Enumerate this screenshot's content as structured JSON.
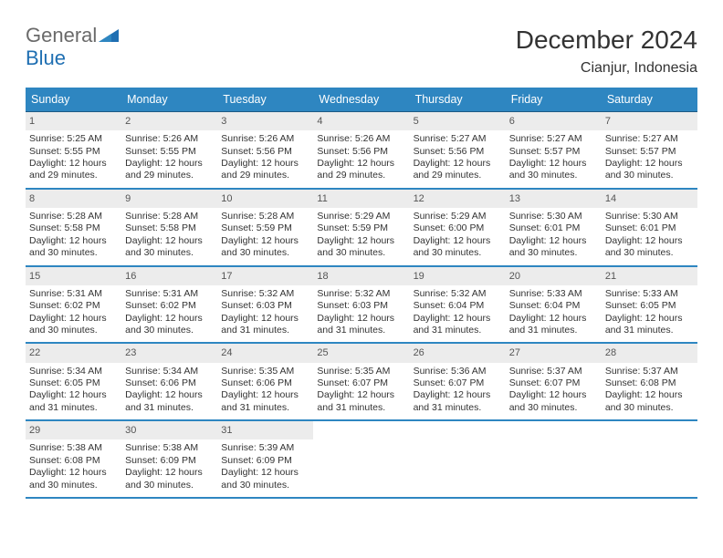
{
  "logo": {
    "word1": "General",
    "word2": "Blue"
  },
  "title": "December 2024",
  "location": "Cianjur, Indonesia",
  "header_bg": "#2e86c1",
  "header_text_color": "#ffffff",
  "daynum_bg": "#ececec",
  "divider_color": "#2e86c1",
  "days_of_week": [
    "Sunday",
    "Monday",
    "Tuesday",
    "Wednesday",
    "Thursday",
    "Friday",
    "Saturday"
  ],
  "weeks": [
    [
      {
        "n": "1",
        "sr": "Sunrise: 5:25 AM",
        "ss": "Sunset: 5:55 PM",
        "d1": "Daylight: 12 hours",
        "d2": "and 29 minutes."
      },
      {
        "n": "2",
        "sr": "Sunrise: 5:26 AM",
        "ss": "Sunset: 5:55 PM",
        "d1": "Daylight: 12 hours",
        "d2": "and 29 minutes."
      },
      {
        "n": "3",
        "sr": "Sunrise: 5:26 AM",
        "ss": "Sunset: 5:56 PM",
        "d1": "Daylight: 12 hours",
        "d2": "and 29 minutes."
      },
      {
        "n": "4",
        "sr": "Sunrise: 5:26 AM",
        "ss": "Sunset: 5:56 PM",
        "d1": "Daylight: 12 hours",
        "d2": "and 29 minutes."
      },
      {
        "n": "5",
        "sr": "Sunrise: 5:27 AM",
        "ss": "Sunset: 5:56 PM",
        "d1": "Daylight: 12 hours",
        "d2": "and 29 minutes."
      },
      {
        "n": "6",
        "sr": "Sunrise: 5:27 AM",
        "ss": "Sunset: 5:57 PM",
        "d1": "Daylight: 12 hours",
        "d2": "and 30 minutes."
      },
      {
        "n": "7",
        "sr": "Sunrise: 5:27 AM",
        "ss": "Sunset: 5:57 PM",
        "d1": "Daylight: 12 hours",
        "d2": "and 30 minutes."
      }
    ],
    [
      {
        "n": "8",
        "sr": "Sunrise: 5:28 AM",
        "ss": "Sunset: 5:58 PM",
        "d1": "Daylight: 12 hours",
        "d2": "and 30 minutes."
      },
      {
        "n": "9",
        "sr": "Sunrise: 5:28 AM",
        "ss": "Sunset: 5:58 PM",
        "d1": "Daylight: 12 hours",
        "d2": "and 30 minutes."
      },
      {
        "n": "10",
        "sr": "Sunrise: 5:28 AM",
        "ss": "Sunset: 5:59 PM",
        "d1": "Daylight: 12 hours",
        "d2": "and 30 minutes."
      },
      {
        "n": "11",
        "sr": "Sunrise: 5:29 AM",
        "ss": "Sunset: 5:59 PM",
        "d1": "Daylight: 12 hours",
        "d2": "and 30 minutes."
      },
      {
        "n": "12",
        "sr": "Sunrise: 5:29 AM",
        "ss": "Sunset: 6:00 PM",
        "d1": "Daylight: 12 hours",
        "d2": "and 30 minutes."
      },
      {
        "n": "13",
        "sr": "Sunrise: 5:30 AM",
        "ss": "Sunset: 6:01 PM",
        "d1": "Daylight: 12 hours",
        "d2": "and 30 minutes."
      },
      {
        "n": "14",
        "sr": "Sunrise: 5:30 AM",
        "ss": "Sunset: 6:01 PM",
        "d1": "Daylight: 12 hours",
        "d2": "and 30 minutes."
      }
    ],
    [
      {
        "n": "15",
        "sr": "Sunrise: 5:31 AM",
        "ss": "Sunset: 6:02 PM",
        "d1": "Daylight: 12 hours",
        "d2": "and 30 minutes."
      },
      {
        "n": "16",
        "sr": "Sunrise: 5:31 AM",
        "ss": "Sunset: 6:02 PM",
        "d1": "Daylight: 12 hours",
        "d2": "and 30 minutes."
      },
      {
        "n": "17",
        "sr": "Sunrise: 5:32 AM",
        "ss": "Sunset: 6:03 PM",
        "d1": "Daylight: 12 hours",
        "d2": "and 31 minutes."
      },
      {
        "n": "18",
        "sr": "Sunrise: 5:32 AM",
        "ss": "Sunset: 6:03 PM",
        "d1": "Daylight: 12 hours",
        "d2": "and 31 minutes."
      },
      {
        "n": "19",
        "sr": "Sunrise: 5:32 AM",
        "ss": "Sunset: 6:04 PM",
        "d1": "Daylight: 12 hours",
        "d2": "and 31 minutes."
      },
      {
        "n": "20",
        "sr": "Sunrise: 5:33 AM",
        "ss": "Sunset: 6:04 PM",
        "d1": "Daylight: 12 hours",
        "d2": "and 31 minutes."
      },
      {
        "n": "21",
        "sr": "Sunrise: 5:33 AM",
        "ss": "Sunset: 6:05 PM",
        "d1": "Daylight: 12 hours",
        "d2": "and 31 minutes."
      }
    ],
    [
      {
        "n": "22",
        "sr": "Sunrise: 5:34 AM",
        "ss": "Sunset: 6:05 PM",
        "d1": "Daylight: 12 hours",
        "d2": "and 31 minutes."
      },
      {
        "n": "23",
        "sr": "Sunrise: 5:34 AM",
        "ss": "Sunset: 6:06 PM",
        "d1": "Daylight: 12 hours",
        "d2": "and 31 minutes."
      },
      {
        "n": "24",
        "sr": "Sunrise: 5:35 AM",
        "ss": "Sunset: 6:06 PM",
        "d1": "Daylight: 12 hours",
        "d2": "and 31 minutes."
      },
      {
        "n": "25",
        "sr": "Sunrise: 5:35 AM",
        "ss": "Sunset: 6:07 PM",
        "d1": "Daylight: 12 hours",
        "d2": "and 31 minutes."
      },
      {
        "n": "26",
        "sr": "Sunrise: 5:36 AM",
        "ss": "Sunset: 6:07 PM",
        "d1": "Daylight: 12 hours",
        "d2": "and 31 minutes."
      },
      {
        "n": "27",
        "sr": "Sunrise: 5:37 AM",
        "ss": "Sunset: 6:07 PM",
        "d1": "Daylight: 12 hours",
        "d2": "and 30 minutes."
      },
      {
        "n": "28",
        "sr": "Sunrise: 5:37 AM",
        "ss": "Sunset: 6:08 PM",
        "d1": "Daylight: 12 hours",
        "d2": "and 30 minutes."
      }
    ],
    [
      {
        "n": "29",
        "sr": "Sunrise: 5:38 AM",
        "ss": "Sunset: 6:08 PM",
        "d1": "Daylight: 12 hours",
        "d2": "and 30 minutes."
      },
      {
        "n": "30",
        "sr": "Sunrise: 5:38 AM",
        "ss": "Sunset: 6:09 PM",
        "d1": "Daylight: 12 hours",
        "d2": "and 30 minutes."
      },
      {
        "n": "31",
        "sr": "Sunrise: 5:39 AM",
        "ss": "Sunset: 6:09 PM",
        "d1": "Daylight: 12 hours",
        "d2": "and 30 minutes."
      },
      {
        "empty": true
      },
      {
        "empty": true
      },
      {
        "empty": true
      },
      {
        "empty": true
      }
    ]
  ]
}
